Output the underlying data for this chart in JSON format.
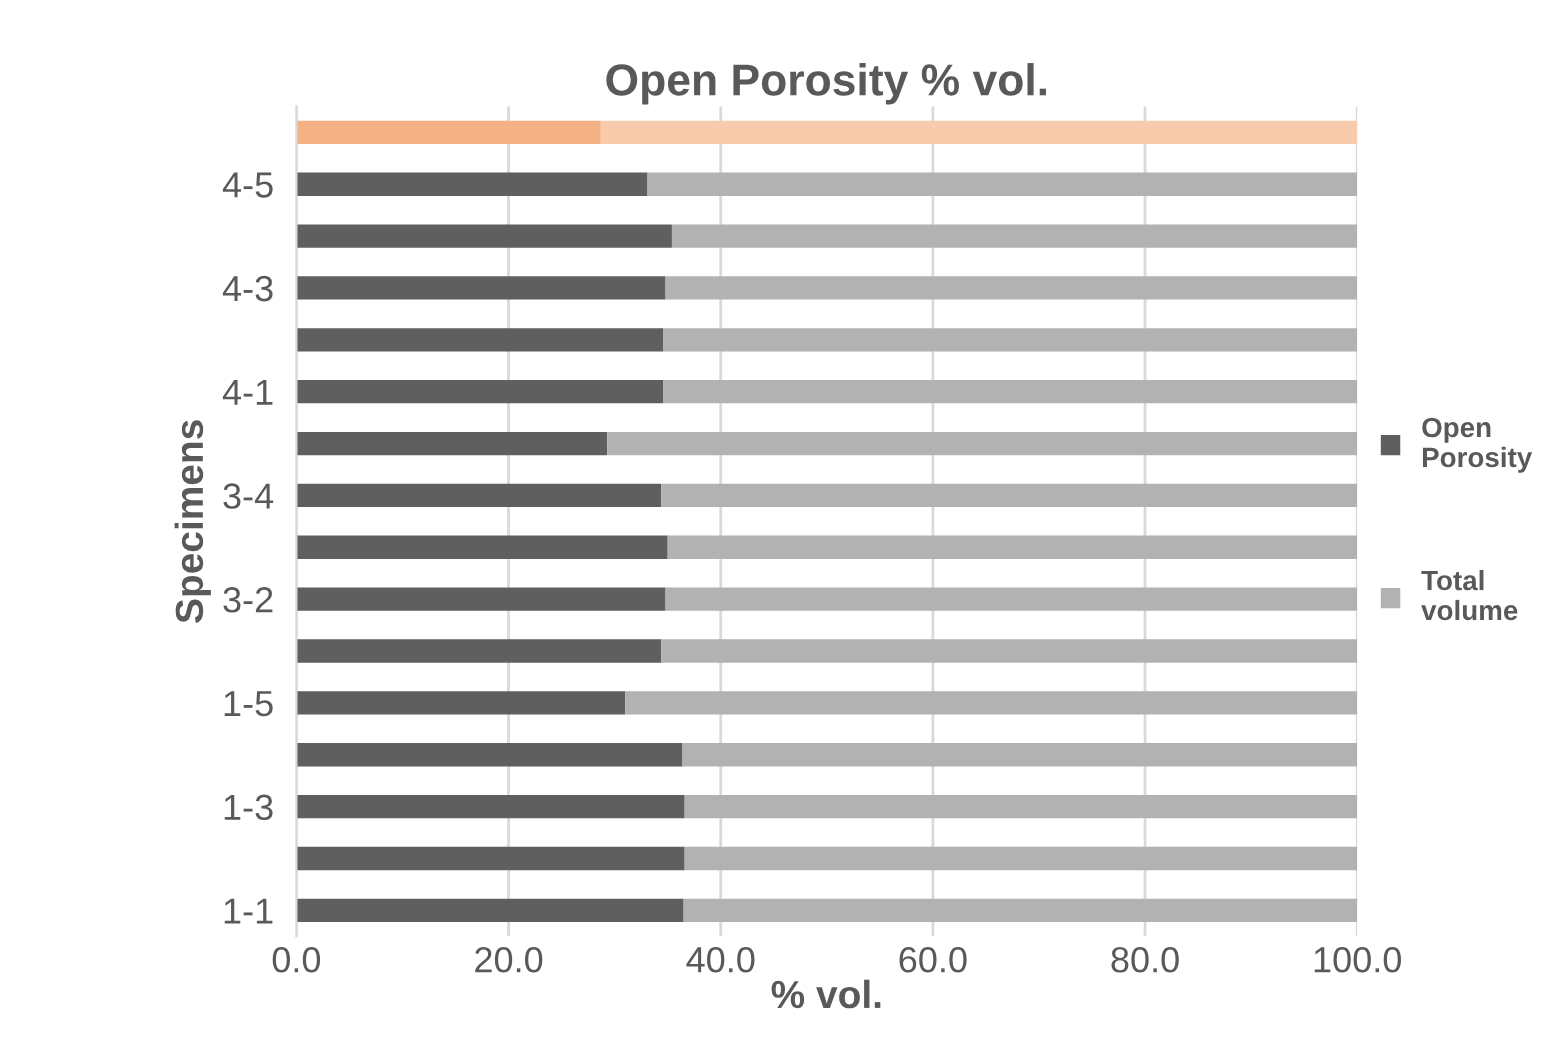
{
  "chart_data": {
    "type": "bar",
    "orientation": "horizontal",
    "stacked": true,
    "title": "Open Porosity % vol.",
    "xlabel": "% vol.",
    "ylabel": "Specimens",
    "categories": [
      null,
      "4-5",
      null,
      "4-3",
      null,
      "4-1",
      null,
      "3-4",
      null,
      "3-2",
      null,
      "1-5",
      null,
      "1-3",
      null,
      "1-1"
    ],
    "series": [
      {
        "name": "Open Porosity",
        "color": "#5f5f5f",
        "colors": [
          "#f4b183",
          "#5f5f5f",
          "#5f5f5f",
          "#5f5f5f",
          "#5f5f5f",
          "#5f5f5f",
          "#5f5f5f",
          "#5f5f5f",
          "#5f5f5f",
          "#5f5f5f",
          "#5f5f5f",
          "#5f5f5f",
          "#5f5f5f",
          "#5f5f5f",
          "#5f5f5f",
          "#5f5f5f"
        ],
        "values": [
          28.7,
          33.1,
          35.4,
          34.8,
          34.6,
          34.6,
          29.3,
          34.4,
          35.0,
          34.8,
          34.4,
          31.0,
          36.4,
          36.6,
          36.6,
          36.5
        ]
      },
      {
        "name": "Total volume",
        "color": "#b2b2b2",
        "colors": [
          "#f8cbad",
          "#b2b2b2",
          "#b2b2b2",
          "#b2b2b2",
          "#b2b2b2",
          "#b2b2b2",
          "#b2b2b2",
          "#b2b2b2",
          "#b2b2b2",
          "#b2b2b2",
          "#b2b2b2",
          "#b2b2b2",
          "#b2b2b2",
          "#b2b2b2",
          "#b2b2b2",
          "#b2b2b2"
        ],
        "values": [
          71.3,
          66.9,
          64.6,
          65.2,
          65.4,
          65.4,
          70.7,
          65.6,
          65.0,
          65.2,
          65.6,
          69.0,
          63.6,
          63.4,
          63.4,
          63.5
        ]
      }
    ],
    "xlim": [
      0,
      100
    ],
    "xticks": [
      {
        "value": 0,
        "label": "0.0"
      },
      {
        "value": 20,
        "label": "20.0"
      },
      {
        "value": 40,
        "label": "40.0"
      },
      {
        "value": 60,
        "label": "60.0"
      },
      {
        "value": 80,
        "label": "80.0"
      },
      {
        "value": 100,
        "label": "100.0"
      }
    ],
    "grid": "x",
    "legend": "right"
  }
}
